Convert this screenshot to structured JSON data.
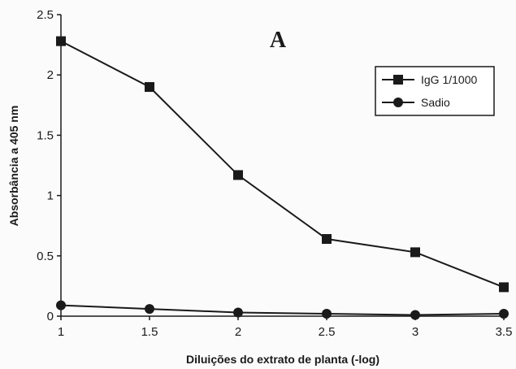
{
  "chart_data": {
    "type": "line",
    "panel_label": "A",
    "xlabel": "Diluições do extrato de planta (-log)",
    "ylabel": "Absorbância a 405 nm",
    "xlim": [
      1,
      3.5
    ],
    "ylim": [
      0,
      2.5
    ],
    "x_ticks": [
      "1",
      "1.5",
      "2",
      "2.5",
      "3",
      "3.5"
    ],
    "y_ticks": [
      "0",
      "0.5",
      "1",
      "1.5",
      "2",
      "2.5"
    ],
    "grid": false,
    "legend_position": "top-right",
    "series": [
      {
        "name": "IgG 1/1000",
        "marker": "square",
        "color": "#1a1a1a",
        "x": [
          1,
          1.5,
          2,
          2.5,
          3,
          3.5
        ],
        "y": [
          2.28,
          1.9,
          1.17,
          0.64,
          0.53,
          0.24
        ]
      },
      {
        "name": "Sadio",
        "marker": "circle",
        "color": "#1a1a1a",
        "x": [
          1,
          1.5,
          2,
          2.5,
          3,
          3.5
        ],
        "y": [
          0.09,
          0.06,
          0.03,
          0.02,
          0.01,
          0.02
        ]
      }
    ]
  }
}
